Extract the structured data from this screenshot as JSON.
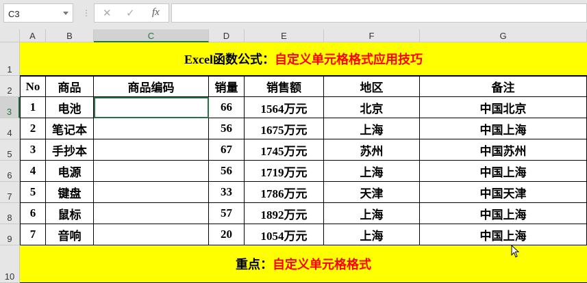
{
  "formula_bar": {
    "name_box": "C3",
    "cancel_icon": "✕",
    "enter_icon": "✓",
    "fx_label": "fx",
    "formula": ""
  },
  "columns": [
    "A",
    "B",
    "C",
    "D",
    "E",
    "F",
    "G"
  ],
  "rows": [
    "1",
    "2",
    "3",
    "4",
    "5",
    "6",
    "7",
    "8",
    "9",
    "10"
  ],
  "title": {
    "prefix": "Excel函数公式：",
    "highlight": "自定义单元格格式应用技巧"
  },
  "table": {
    "headers": [
      "No",
      "商品",
      "商品编码",
      "销量",
      "销售额",
      "地区",
      "备注"
    ],
    "rows": [
      [
        "1",
        "电池",
        "",
        "66",
        "1564万元",
        "北京",
        "中国北京"
      ],
      [
        "2",
        "笔记本",
        "",
        "56",
        "1675万元",
        "上海",
        "中国上海"
      ],
      [
        "3",
        "手抄本",
        "",
        "67",
        "1745万元",
        "苏州",
        "中国苏州"
      ],
      [
        "4",
        "电源",
        "",
        "56",
        "1719万元",
        "上海",
        "中国上海"
      ],
      [
        "5",
        "键盘",
        "",
        "33",
        "1786万元",
        "天津",
        "中国天津"
      ],
      [
        "6",
        "鼠标",
        "",
        "57",
        "1892万元",
        "上海",
        "中国上海"
      ],
      [
        "7",
        "音响",
        "",
        "20",
        "1054万元",
        "上海",
        "中国上海"
      ]
    ]
  },
  "footer": {
    "prefix": "重点：",
    "highlight": "自定义单元格格式"
  },
  "colors": {
    "highlight_fill": "#ffff00",
    "accent_text": "#ff0000",
    "selection": "#217346"
  }
}
